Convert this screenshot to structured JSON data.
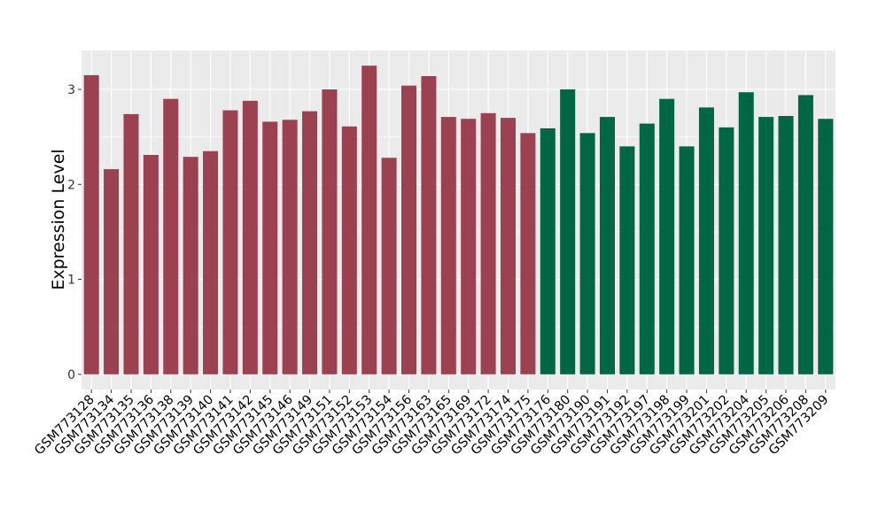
{
  "chart_data": {
    "type": "bar",
    "title": "",
    "xlabel": "",
    "ylabel": "Expression Level",
    "ylim": [
      -0.16,
      3.41
    ],
    "yticks": [
      0,
      1,
      2,
      3
    ],
    "grid": true,
    "legend": "none",
    "categories": [
      "GSM773128",
      "GSM773134",
      "GSM773135",
      "GSM773136",
      "GSM773138",
      "GSM773139",
      "GSM773140",
      "GSM773141",
      "GSM773142",
      "GSM773145",
      "GSM773146",
      "GSM773149",
      "GSM773151",
      "GSM773152",
      "GSM773153",
      "GSM773154",
      "GSM773156",
      "GSM773163",
      "GSM773165",
      "GSM773169",
      "GSM773172",
      "GSM773174",
      "GSM773175",
      "GSM773176",
      "GSM773180",
      "GSM773190",
      "GSM773191",
      "GSM773192",
      "GSM773197",
      "GSM773198",
      "GSM773199",
      "GSM773201",
      "GSM773202",
      "GSM773204",
      "GSM773205",
      "GSM773206",
      "GSM773208",
      "GSM773209"
    ],
    "values": [
      3.15,
      2.16,
      2.74,
      2.31,
      2.9,
      2.29,
      2.35,
      2.78,
      2.88,
      2.66,
      2.68,
      2.77,
      3.0,
      2.61,
      3.25,
      2.28,
      3.04,
      3.14,
      2.71,
      2.69,
      2.75,
      2.7,
      2.54,
      2.59,
      3.0,
      2.54,
      2.71,
      2.4,
      2.64,
      2.9,
      2.4,
      2.81,
      2.6,
      2.97,
      2.71,
      2.72,
      2.94,
      2.69
    ],
    "groups": [
      "a",
      "a",
      "a",
      "a",
      "a",
      "a",
      "a",
      "a",
      "a",
      "a",
      "a",
      "a",
      "a",
      "a",
      "a",
      "a",
      "a",
      "a",
      "a",
      "a",
      "a",
      "a",
      "a",
      "b",
      "b",
      "b",
      "b",
      "b",
      "b",
      "b",
      "b",
      "b",
      "b",
      "b",
      "b",
      "b",
      "b",
      "b"
    ],
    "colors": {
      "a": "#9b4150",
      "b": "#006643",
      "panel": "#ebebeb",
      "grid": "#ffffff"
    }
  }
}
